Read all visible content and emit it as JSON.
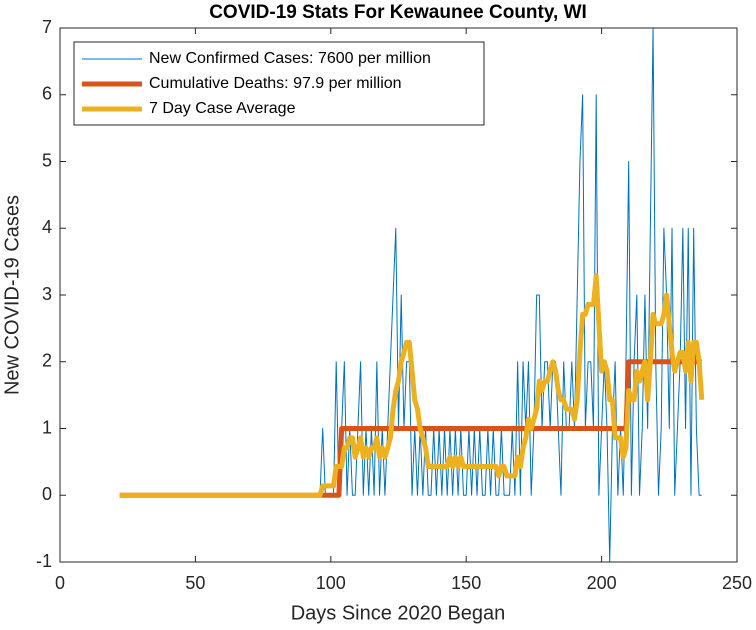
{
  "chart_data": {
    "type": "line",
    "title": "COVID-19 Stats For Kewaunee County, WI",
    "x_label": "Days Since 2020 Began",
    "y_label": "New COVID-19 Cases",
    "xlim": [
      0,
      250
    ],
    "xticks": [
      0,
      50,
      100,
      150,
      200,
      250
    ],
    "ylim": [
      -1,
      7
    ],
    "yticks": [
      -1,
      0,
      1,
      2,
      3,
      4,
      5,
      6,
      7
    ],
    "legend": "upper left",
    "x": [
      22,
      23,
      24,
      25,
      26,
      27,
      28,
      29,
      30,
      31,
      32,
      33,
      34,
      35,
      36,
      37,
      38,
      39,
      40,
      41,
      42,
      43,
      44,
      45,
      46,
      47,
      48,
      49,
      50,
      51,
      52,
      53,
      54,
      55,
      56,
      57,
      58,
      59,
      60,
      61,
      62,
      63,
      64,
      65,
      66,
      67,
      68,
      69,
      70,
      71,
      72,
      73,
      74,
      75,
      76,
      77,
      78,
      79,
      80,
      81,
      82,
      83,
      84,
      85,
      86,
      87,
      88,
      89,
      90,
      91,
      92,
      93,
      94,
      95,
      96,
      97,
      98,
      99,
      100,
      101,
      102,
      103,
      104,
      105,
      106,
      107,
      108,
      109,
      110,
      111,
      112,
      113,
      114,
      115,
      116,
      117,
      118,
      119,
      120,
      121,
      122,
      123,
      124,
      125,
      126,
      127,
      128,
      129,
      130,
      131,
      132,
      133,
      134,
      135,
      136,
      137,
      138,
      139,
      140,
      141,
      142,
      143,
      144,
      145,
      146,
      147,
      148,
      149,
      150,
      151,
      152,
      153,
      154,
      155,
      156,
      157,
      158,
      159,
      160,
      161,
      162,
      163,
      164,
      165,
      166,
      167,
      168,
      169,
      170,
      171,
      172,
      173,
      174,
      175,
      176,
      177,
      178,
      179,
      180,
      181,
      182,
      183,
      184,
      185,
      186,
      187,
      188,
      189,
      190,
      191,
      192,
      193,
      194,
      195,
      196,
      197,
      198,
      199,
      200,
      201,
      202,
      203,
      204,
      205,
      206,
      207,
      208,
      209,
      210,
      211,
      212,
      213,
      214,
      215,
      216,
      217,
      218,
      219,
      220,
      221,
      222,
      223,
      224,
      225,
      226,
      227,
      228,
      229,
      230,
      231,
      232,
      233,
      234,
      235,
      236,
      237
    ],
    "series": [
      {
        "name": "New Confirmed Cases: 7600 per million",
        "color": "#0072bd",
        "width": 1,
        "values": [
          0,
          0,
          0,
          0,
          0,
          0,
          0,
          0,
          0,
          0,
          0,
          0,
          0,
          0,
          0,
          0,
          0,
          0,
          0,
          0,
          0,
          0,
          0,
          0,
          0,
          0,
          0,
          0,
          0,
          0,
          0,
          0,
          0,
          0,
          0,
          0,
          0,
          0,
          0,
          0,
          0,
          0,
          0,
          0,
          0,
          0,
          0,
          0,
          0,
          0,
          0,
          0,
          0,
          0,
          0,
          0,
          0,
          0,
          0,
          0,
          0,
          0,
          0,
          0,
          0,
          0,
          0,
          0,
          0,
          0,
          0,
          0,
          0,
          0,
          0,
          1,
          0,
          0,
          0,
          0,
          2,
          0,
          1,
          2,
          0,
          1,
          0,
          0,
          1,
          2,
          0,
          1,
          0,
          1,
          0,
          2,
          0,
          1,
          0,
          1,
          2,
          3,
          4,
          1,
          3,
          1,
          2,
          2,
          0,
          1,
          0,
          1,
          0,
          1,
          0,
          0,
          1,
          0,
          1,
          0,
          1,
          0,
          1,
          0,
          1,
          0,
          1,
          0,
          0,
          1,
          0,
          1,
          0,
          1,
          0,
          0,
          1,
          0,
          1,
          0,
          0,
          1,
          0,
          0,
          0,
          1,
          0,
          2,
          0,
          2,
          1,
          2,
          0,
          1,
          3,
          3,
          1,
          2,
          2,
          1,
          2,
          2,
          1,
          0,
          2,
          1,
          1,
          2,
          1,
          3,
          5,
          6,
          1,
          2,
          2,
          1,
          6,
          0,
          1,
          2,
          1,
          -1,
          1,
          2,
          0,
          1,
          0,
          2,
          5,
          0,
          2,
          3,
          0,
          1,
          3,
          1,
          4,
          7,
          2,
          0,
          1,
          4,
          3,
          1,
          4,
          0,
          1,
          2,
          4,
          1,
          4,
          0,
          4,
          1,
          0,
          0
        ]
      },
      {
        "name": "Cumulative Deaths: 97.9 per million",
        "color": "#d95319",
        "width": 5,
        "values": [
          0,
          0,
          0,
          0,
          0,
          0,
          0,
          0,
          0,
          0,
          0,
          0,
          0,
          0,
          0,
          0,
          0,
          0,
          0,
          0,
          0,
          0,
          0,
          0,
          0,
          0,
          0,
          0,
          0,
          0,
          0,
          0,
          0,
          0,
          0,
          0,
          0,
          0,
          0,
          0,
          0,
          0,
          0,
          0,
          0,
          0,
          0,
          0,
          0,
          0,
          0,
          0,
          0,
          0,
          0,
          0,
          0,
          0,
          0,
          0,
          0,
          0,
          0,
          0,
          0,
          0,
          0,
          0,
          0,
          0,
          0,
          0,
          0,
          0,
          0,
          0,
          0,
          0,
          0,
          0,
          0,
          0,
          1,
          1,
          1,
          1,
          1,
          1,
          1,
          1,
          1,
          1,
          1,
          1,
          1,
          1,
          1,
          1,
          1,
          1,
          1,
          1,
          1,
          1,
          1,
          1,
          1,
          1,
          1,
          1,
          1,
          1,
          1,
          1,
          1,
          1,
          1,
          1,
          1,
          1,
          1,
          1,
          1,
          1,
          1,
          1,
          1,
          1,
          1,
          1,
          1,
          1,
          1,
          1,
          1,
          1,
          1,
          1,
          1,
          1,
          1,
          1,
          1,
          1,
          1,
          1,
          1,
          1,
          1,
          1,
          1,
          1,
          1,
          1,
          1,
          1,
          1,
          1,
          1,
          1,
          1,
          1,
          1,
          1,
          1,
          1,
          1,
          1,
          1,
          1,
          1,
          1,
          1,
          1,
          1,
          1,
          1,
          1,
          1,
          1,
          1,
          1,
          1,
          1,
          1,
          1,
          1,
          1,
          2,
          2,
          2,
          2,
          2,
          2,
          2,
          2,
          2,
          2,
          2,
          2,
          2,
          2,
          2,
          2,
          2,
          2,
          2,
          2,
          2,
          2,
          2,
          2,
          2,
          2,
          2,
          2
        ]
      },
      {
        "name": "7 Day Case Average",
        "color": "#edb120",
        "width": 5,
        "values": [
          0,
          0,
          0,
          0,
          0,
          0,
          0,
          0,
          0,
          0,
          0,
          0,
          0,
          0,
          0,
          0,
          0,
          0,
          0,
          0,
          0,
          0,
          0,
          0,
          0,
          0,
          0,
          0,
          0,
          0,
          0,
          0,
          0,
          0,
          0,
          0,
          0,
          0,
          0,
          0,
          0,
          0,
          0,
          0,
          0,
          0,
          0,
          0,
          0,
          0,
          0,
          0,
          0,
          0,
          0,
          0,
          0,
          0,
          0,
          0,
          0,
          0,
          0,
          0,
          0,
          0,
          0,
          0,
          0,
          0,
          0,
          0,
          0,
          0,
          0,
          0.14,
          0.14,
          0.14,
          0.14,
          0.14,
          0.43,
          0.43,
          0.43,
          0.71,
          0.71,
          0.86,
          0.86,
          0.57,
          0.71,
          0.86,
          0.57,
          0.71,
          0.57,
          0.71,
          0.71,
          0.86,
          0.57,
          0.71,
          0.57,
          0.71,
          0.86,
          1.29,
          1.57,
          1.71,
          2,
          2.14,
          2.29,
          2.29,
          1.86,
          1.43,
          1.29,
          1,
          0.86,
          0.71,
          0.43,
          0.43,
          0.43,
          0.43,
          0.43,
          0.43,
          0.43,
          0.43,
          0.57,
          0.43,
          0.57,
          0.43,
          0.57,
          0.43,
          0.43,
          0.43,
          0.43,
          0.43,
          0.43,
          0.43,
          0.43,
          0.43,
          0.43,
          0.43,
          0.43,
          0.43,
          0.29,
          0.43,
          0.43,
          0.29,
          0.29,
          0.29,
          0.29,
          0.57,
          0.43,
          0.71,
          0.86,
          1.14,
          1,
          1.14,
          1.29,
          1.71,
          1.57,
          1.71,
          1.71,
          1.86,
          2,
          1.86,
          1.57,
          1.43,
          1.43,
          1.29,
          1.29,
          1.29,
          1.14,
          1.43,
          2.14,
          2.71,
          2.71,
          2.86,
          2.86,
          2.86,
          3.29,
          2.57,
          1.86,
          2,
          1.86,
          1.43,
          1.43,
          0.86,
          0.86,
          0.86,
          0.57,
          0.71,
          1.57,
          1.43,
          1.43,
          1.86,
          1.71,
          1.86,
          2,
          1.43,
          2,
          2.71,
          2.57,
          2.57,
          2.57,
          2.71,
          3,
          2.57,
          2.14,
          1.86,
          2,
          2.14,
          2.14,
          1.86,
          2.29,
          1.71,
          2.29,
          2.29,
          2,
          1.43
        ]
      }
    ]
  }
}
